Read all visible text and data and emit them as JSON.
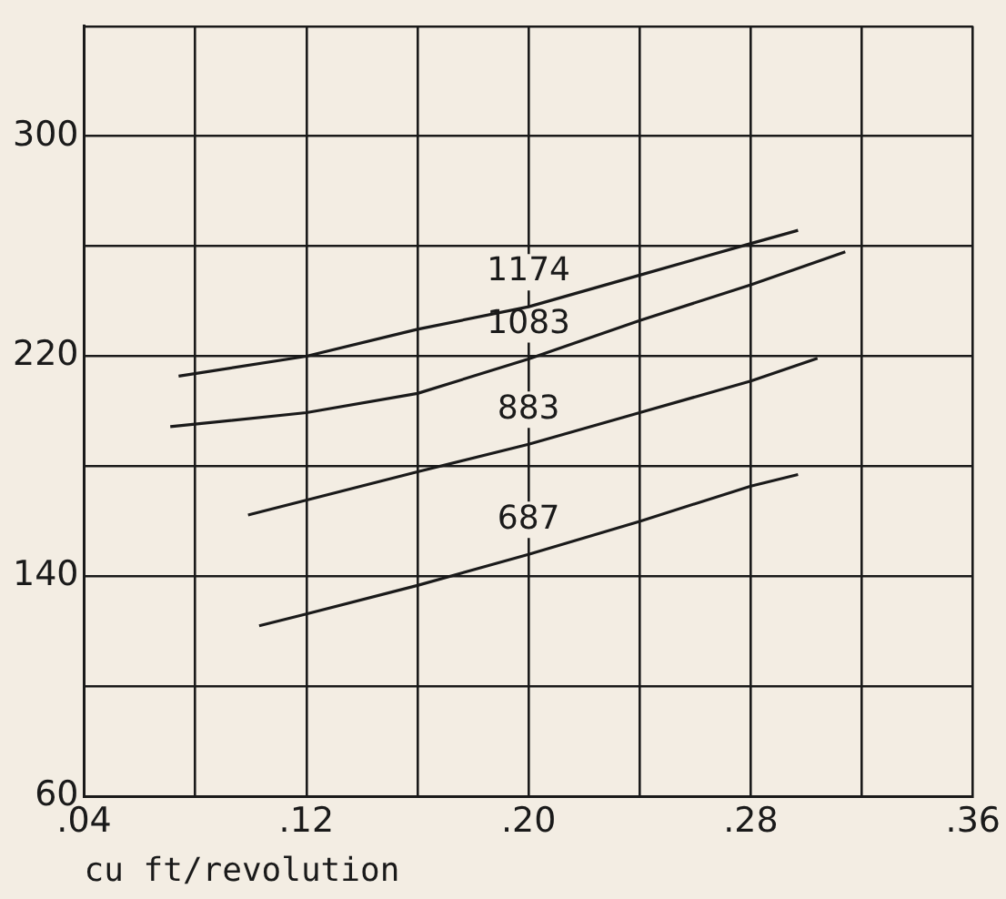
{
  "chart_data": {
    "type": "line",
    "xlabel": "cu ft/revolution",
    "xlim": [
      0.04,
      0.36
    ],
    "ylim": [
      60,
      340
    ],
    "xticks": [
      {
        "value": 0.04,
        "label": ".04"
      },
      {
        "value": 0.08,
        "label": null
      },
      {
        "value": 0.12,
        "label": ".12"
      },
      {
        "value": 0.16,
        "label": null
      },
      {
        "value": 0.2,
        "label": ".20"
      },
      {
        "value": 0.24,
        "label": null
      },
      {
        "value": 0.28,
        "label": ".28"
      },
      {
        "value": 0.32,
        "label": null
      },
      {
        "value": 0.36,
        "label": ".36"
      }
    ],
    "yticks": [
      60,
      {
        "value": 100,
        "label": null
      },
      140,
      {
        "value": 180,
        "label": null
      },
      220,
      {
        "value": 260,
        "label": null
      },
      300,
      {
        "value": 340,
        "label": null
      }
    ],
    "grid": true,
    "marker": "none",
    "line_style": "solid",
    "series": [
      {
        "name": "1174",
        "color": "#1a1a1a",
        "x": [
          0.074,
          0.12,
          0.16,
          0.2,
          0.24,
          0.28,
          0.297
        ],
        "values": [
          212.8,
          220,
          229.8,
          238,
          249.5,
          261,
          265.8
        ]
      },
      {
        "name": "1083",
        "color": "#1a1a1a",
        "x": [
          0.071,
          0.12,
          0.16,
          0.2,
          0.24,
          0.28,
          0.314
        ],
        "values": [
          194.4,
          199.5,
          206.5,
          219,
          233,
          246,
          258
        ]
      },
      {
        "name": "883",
        "color": "#1a1a1a",
        "x": [
          0.099,
          0.16,
          0.2,
          0.24,
          0.28,
          0.304
        ],
        "values": [
          162.3,
          178,
          188,
          199.5,
          211,
          219.3
        ]
      },
      {
        "name": "687",
        "color": "#1a1a1a",
        "x": [
          0.103,
          0.12,
          0.16,
          0.2,
          0.24,
          0.28,
          0.297
        ],
        "values": [
          122,
          126.3,
          136.7,
          148,
          160,
          172.8,
          177
        ]
      }
    ]
  }
}
